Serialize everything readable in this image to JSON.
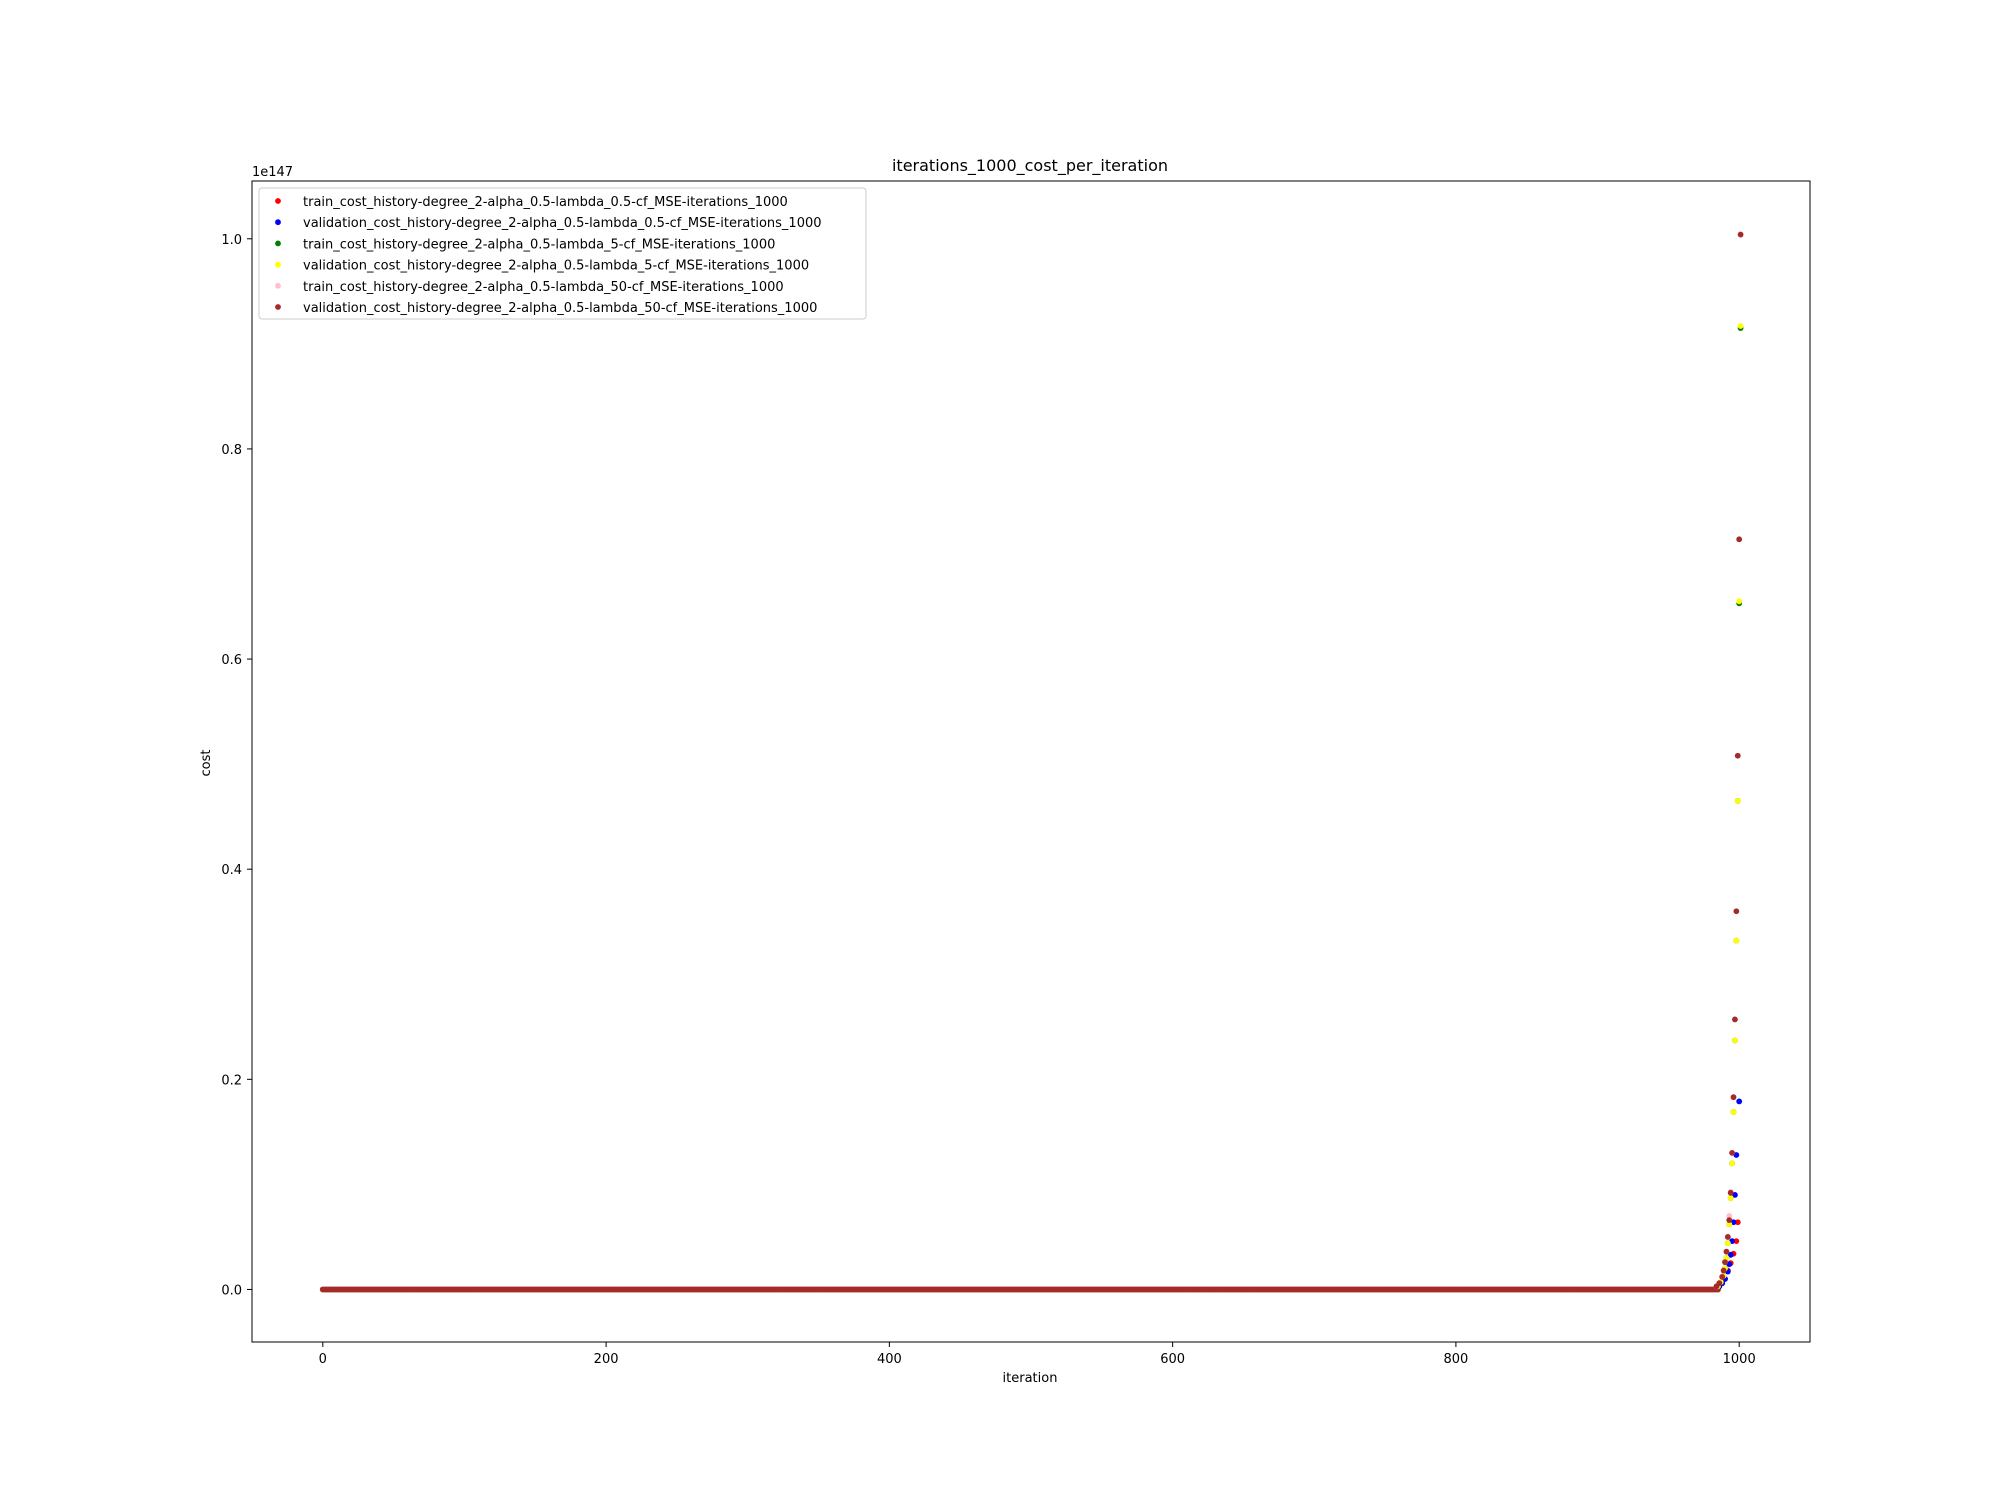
{
  "chart_data": {
    "type": "scatter",
    "title": "iterations_1000_cost_per_iteration",
    "xlabel": "iteration",
    "ylabel": "cost",
    "y_offset_label": "1e147",
    "xlim": [
      -50,
      1050
    ],
    "ylim": [
      -0.05,
      1.055
    ],
    "x_ticks": [
      0,
      200,
      400,
      600,
      800,
      1000
    ],
    "y_ticks": [
      0.0,
      0.2,
      0.4,
      0.6,
      0.8,
      1.0
    ],
    "grid": false,
    "legend_position": "upper-left",
    "baseline": {
      "iterations": [
        0,
        1000
      ],
      "value": 0.0,
      "note": "all series lie at ~0 for iterations 0-985"
    },
    "series": [
      {
        "name": "train_cost_history-degree_2-alpha_0.5-lambda_0.5-cf_MSE-iterations_1000",
        "color": "#ff0000",
        "points": [
          [
            986,
            0.003
          ],
          [
            988,
            0.006
          ],
          [
            990,
            0.01
          ],
          [
            992,
            0.018
          ],
          [
            994,
            0.025
          ],
          [
            996,
            0.034
          ],
          [
            998,
            0.046
          ],
          [
            999,
            0.064
          ]
        ]
      },
      {
        "name": "validation_cost_history-degree_2-alpha_0.5-lambda_0.5-cf_MSE-iterations_1000",
        "color": "#0000ff",
        "points": [
          [
            986,
            0.003
          ],
          [
            988,
            0.006
          ],
          [
            990,
            0.01
          ],
          [
            992,
            0.017
          ],
          [
            993,
            0.024
          ],
          [
            994,
            0.033
          ],
          [
            995,
            0.046
          ],
          [
            996,
            0.064
          ],
          [
            997,
            0.09
          ],
          [
            998,
            0.128
          ],
          [
            1000,
            0.179
          ]
        ]
      },
      {
        "name": "train_cost_history-degree_2-alpha_0.5-lambda_5-cf_MSE-iterations_1000",
        "color": "#008000",
        "points": [
          [
            985,
            0.003
          ],
          [
            987,
            0.007
          ],
          [
            989,
            0.013
          ],
          [
            990,
            0.02
          ],
          [
            991,
            0.03
          ],
          [
            992,
            0.044
          ],
          [
            993,
            0.062
          ],
          [
            994,
            0.087
          ],
          [
            995,
            0.12
          ],
          [
            996,
            0.169
          ],
          [
            997,
            0.237
          ],
          [
            998,
            0.332
          ],
          [
            999,
            0.465
          ],
          [
            1000,
            0.653
          ],
          [
            1001,
            0.915
          ]
        ]
      },
      {
        "name": "validation_cost_history-degree_2-alpha_0.5-lambda_5-cf_MSE-iterations_1000",
        "color": "#ffff00",
        "points": [
          [
            985,
            0.003
          ],
          [
            987,
            0.007
          ],
          [
            989,
            0.013
          ],
          [
            990,
            0.02
          ],
          [
            991,
            0.03
          ],
          [
            992,
            0.044
          ],
          [
            993,
            0.062
          ],
          [
            994,
            0.087
          ],
          [
            995,
            0.12
          ],
          [
            996,
            0.169
          ],
          [
            997,
            0.237
          ],
          [
            998,
            0.332
          ],
          [
            999,
            0.465
          ],
          [
            1000,
            0.655
          ],
          [
            1001,
            0.917
          ]
        ]
      },
      {
        "name": "train_cost_history-degree_2-alpha_0.5-lambda_50-cf_MSE-iterations_1000",
        "color": "#ffc0cb",
        "points": [
          [
            984,
            0.003
          ],
          [
            986,
            0.006
          ],
          [
            988,
            0.012
          ],
          [
            989,
            0.018
          ],
          [
            990,
            0.026
          ],
          [
            991,
            0.036
          ],
          [
            992,
            0.05
          ],
          [
            993,
            0.07
          ],
          [
            994,
            0.093
          ],
          [
            995,
            0.13
          ]
        ]
      },
      {
        "name": "validation_cost_history-degree_2-alpha_0.5-lambda_50-cf_MSE-iterations_1000",
        "color": "#a52a2a",
        "points": [
          [
            984,
            0.003
          ],
          [
            986,
            0.006
          ],
          [
            988,
            0.012
          ],
          [
            989,
            0.018
          ],
          [
            990,
            0.026
          ],
          [
            991,
            0.036
          ],
          [
            992,
            0.05
          ],
          [
            993,
            0.066
          ],
          [
            994,
            0.092
          ],
          [
            995,
            0.13
          ],
          [
            996,
            0.183
          ],
          [
            997,
            0.257
          ],
          [
            998,
            0.36
          ],
          [
            999,
            0.508
          ],
          [
            1000,
            0.714
          ],
          [
            1001,
            1.004
          ]
        ]
      }
    ]
  }
}
